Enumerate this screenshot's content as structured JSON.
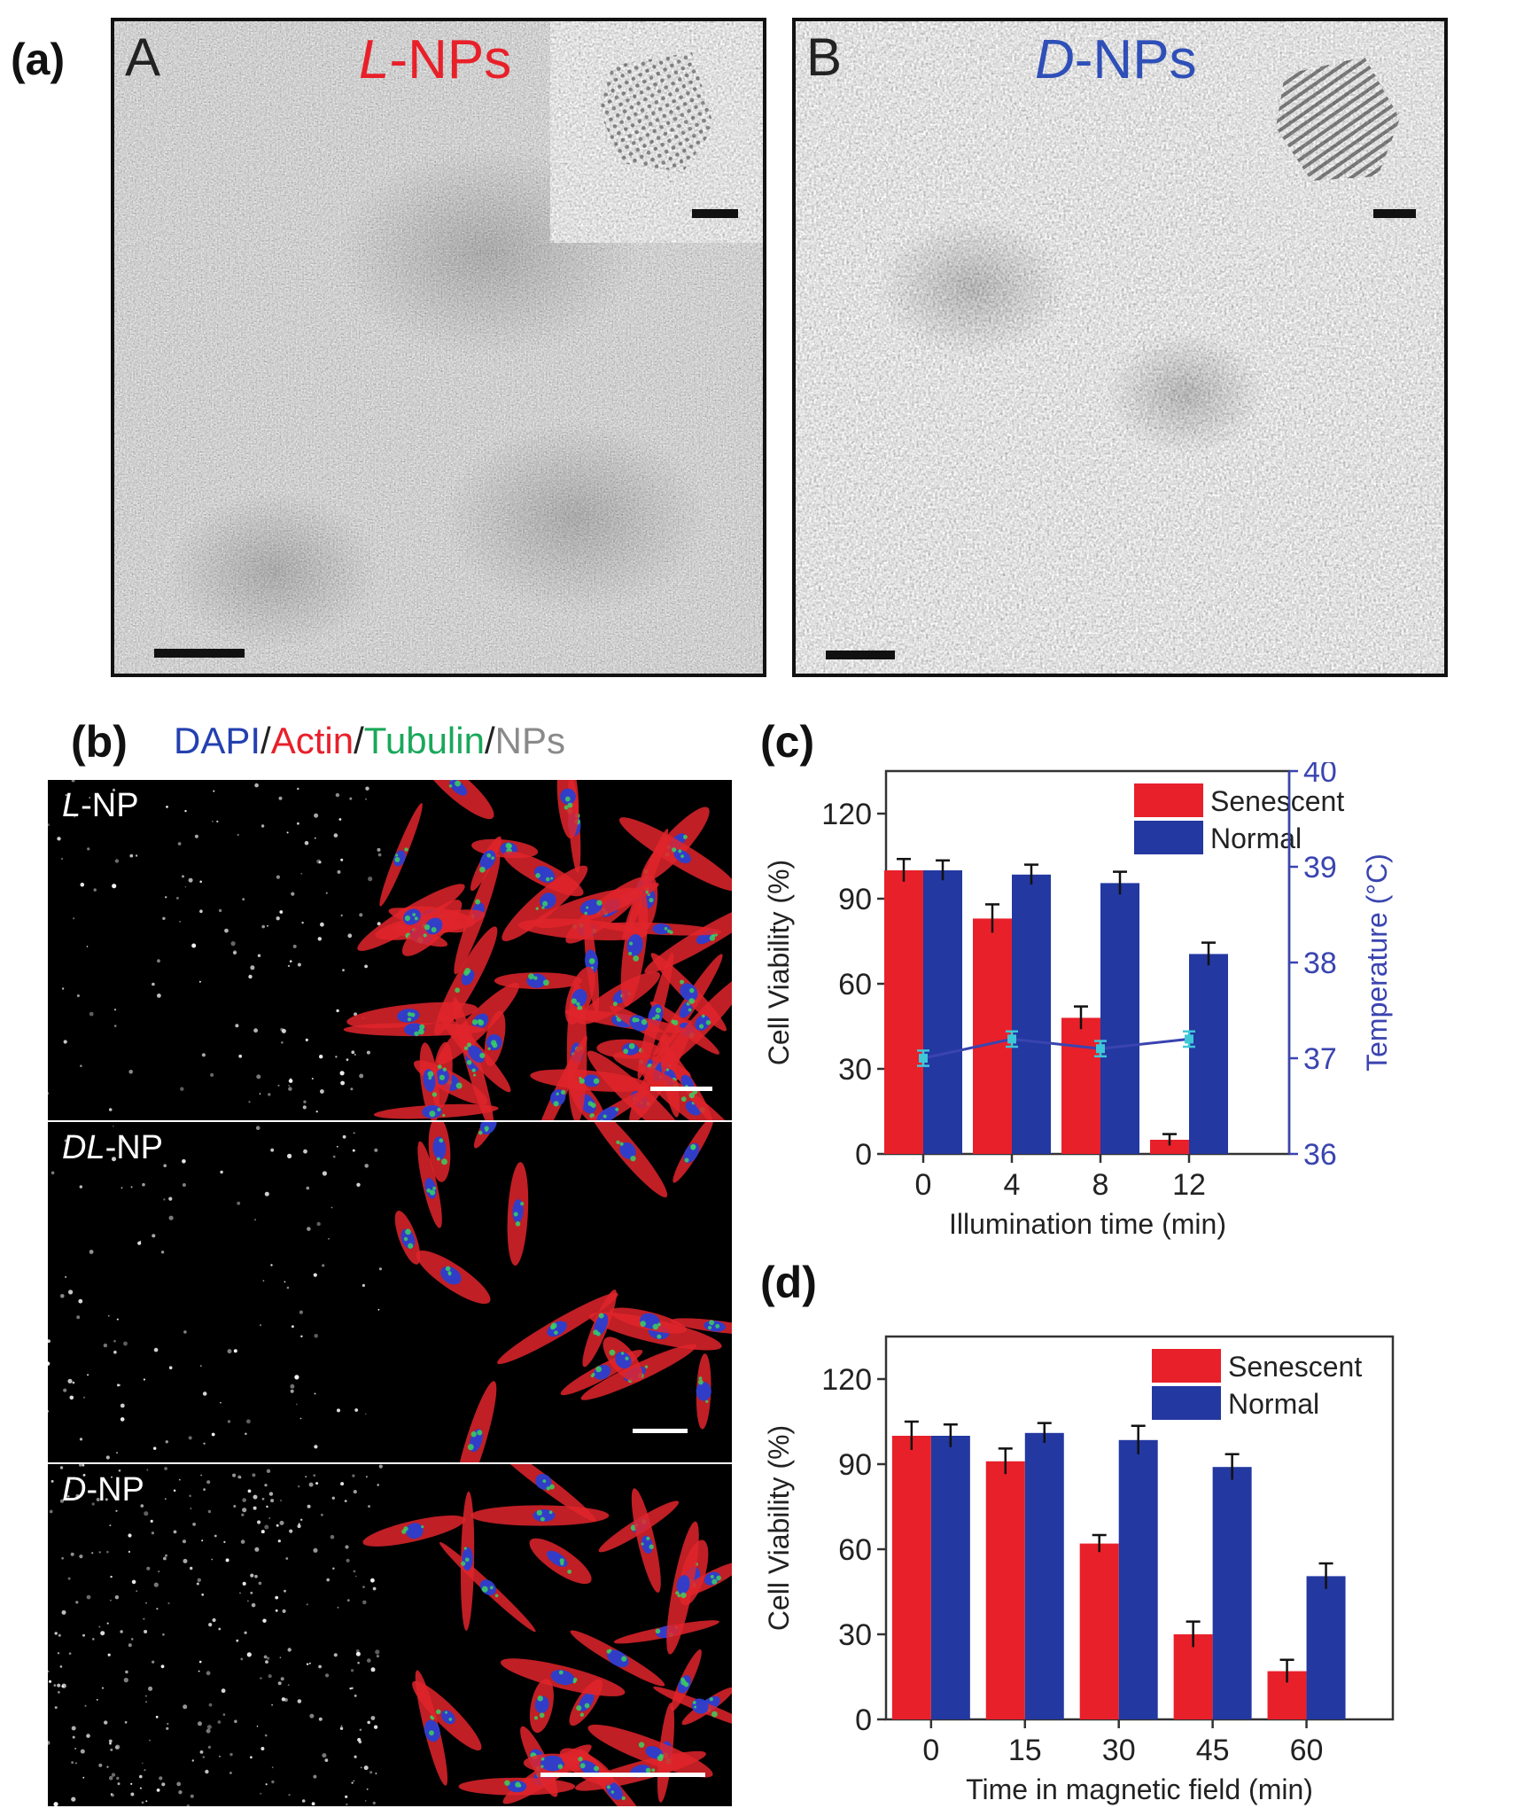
{
  "panel_labels": {
    "a": "(a)",
    "b": "(b)",
    "c": "(c)",
    "d": "(d)"
  },
  "panel_a": {
    "image_A": {
      "letter": "A",
      "title_italic": "L",
      "title_rest": "-NPs",
      "title_color": "#e8202a"
    },
    "image_B": {
      "letter": "B",
      "title_italic": "D",
      "title_rest": "-NPs",
      "title_color": "#2f4fb8"
    }
  },
  "panel_b": {
    "legend": [
      {
        "text": "DAPI",
        "color": "#2340b0"
      },
      {
        "text": "/",
        "color": "#222222"
      },
      {
        "text": "Actin",
        "color": "#e8202a"
      },
      {
        "text": "/",
        "color": "#222222"
      },
      {
        "text": "Tubulin",
        "color": "#19a85a"
      },
      {
        "text": "/",
        "color": "#222222"
      },
      {
        "text": "NPs",
        "color": "#8a8a8a"
      }
    ],
    "rows": [
      {
        "label_italic": "L",
        "label_rest": "-NP"
      },
      {
        "label_italic": "DL",
        "label_rest": "-NP"
      },
      {
        "label_italic": "D",
        "label_rest": "-NP"
      }
    ]
  },
  "chart_data": [
    {
      "id": "c",
      "type": "bar",
      "categories": [
        "0",
        "4",
        "8",
        "12"
      ],
      "xlabel": "Illumination time (min)",
      "ylabel": "Cell Viability (%)",
      "ylim": [
        0,
        135
      ],
      "yticks": [
        0,
        30,
        60,
        90,
        120
      ],
      "y2label": "Temperature (°C)",
      "y2lim": [
        36,
        40
      ],
      "y2ticks": [
        36,
        37,
        38,
        39,
        40
      ],
      "legend_position": "top-right",
      "series": [
        {
          "name": "Senescent",
          "color": "#e8202a",
          "values": [
            100,
            83,
            48,
            5
          ],
          "errors": [
            4,
            5,
            4,
            2
          ]
        },
        {
          "name": "Normal",
          "color": "#2338a0",
          "values": [
            100,
            98.5,
            95.5,
            70.5
          ],
          "errors": [
            3.5,
            3.5,
            4,
            4
          ]
        }
      ],
      "line_series": {
        "axis": "y2",
        "color": "#3a44b0",
        "marker_color": "#3ec7d8",
        "values": [
          37.0,
          37.2,
          37.1,
          37.2
        ],
        "errors": [
          0.08,
          0.08,
          0.08,
          0.08
        ]
      }
    },
    {
      "id": "d",
      "type": "bar",
      "categories": [
        "0",
        "15",
        "30",
        "45",
        "60"
      ],
      "xlabel": "Time in magnetic field (min)",
      "ylabel": "Cell Viability (%)",
      "ylim": [
        0,
        135
      ],
      "yticks": [
        0,
        30,
        60,
        90,
        120
      ],
      "legend_position": "top-right",
      "series": [
        {
          "name": "Senescent",
          "color": "#e8202a",
          "values": [
            100,
            91,
            62,
            30,
            17
          ],
          "errors": [
            5,
            4.5,
            3,
            4.5,
            4
          ]
        },
        {
          "name": "Normal",
          "color": "#2338a0",
          "values": [
            100,
            101,
            98.5,
            89,
            50.5
          ],
          "errors": [
            4,
            3.5,
            5,
            4.5,
            4.5
          ]
        }
      ]
    }
  ]
}
